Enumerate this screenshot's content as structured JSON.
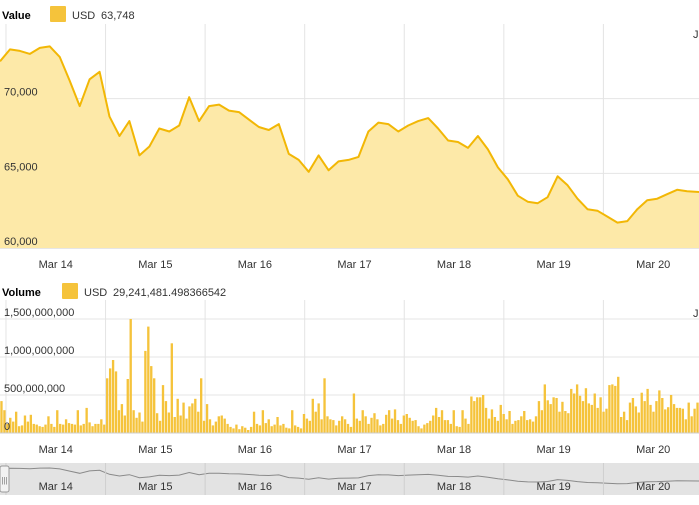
{
  "colors": {
    "line": "#f2b705",
    "fill": "#fde9a8",
    "bar": "#f5c33b",
    "grid": "#e4e4e4",
    "navigator_bg": "#dcdcdc",
    "navigator_line": "#8a8a8a"
  },
  "chart_data": [
    {
      "type": "area",
      "title": "Value",
      "legend": {
        "series_name": "USD",
        "value_label": "63,748",
        "placement": "top-left"
      },
      "x_tick_labels": [
        "Mar 14",
        "Mar 15",
        "Mar 16",
        "Mar 17",
        "Mar 18",
        "Mar 19",
        "Mar 20"
      ],
      "x_tick_positions": [
        0.5,
        1.5,
        2.5,
        3.5,
        4.5,
        5.5,
        6.5
      ],
      "xlim": [
        -0.06,
        6.96
      ],
      "y_tick_labels": [
        "60,000",
        "65,000",
        "70,000"
      ],
      "y_ticks": [
        60000,
        65000,
        70000
      ],
      "ylim": [
        60000,
        75000
      ],
      "grid": true,
      "x": [
        -0.06,
        0.04,
        0.14,
        0.24,
        0.34,
        0.44,
        0.54,
        0.64,
        0.74,
        0.84,
        0.94,
        1.04,
        1.14,
        1.24,
        1.34,
        1.44,
        1.54,
        1.64,
        1.74,
        1.84,
        1.94,
        2.04,
        2.14,
        2.24,
        2.34,
        2.44,
        2.54,
        2.64,
        2.74,
        2.84,
        2.94,
        3.04,
        3.14,
        3.24,
        3.34,
        3.44,
        3.54,
        3.64,
        3.74,
        3.84,
        3.94,
        4.04,
        4.14,
        4.24,
        4.34,
        4.44,
        4.54,
        4.64,
        4.74,
        4.84,
        4.94,
        5.04,
        5.14,
        5.24,
        5.34,
        5.44,
        5.54,
        5.64,
        5.74,
        5.84,
        5.94,
        6.04,
        6.14,
        6.24,
        6.34,
        6.44,
        6.54,
        6.64,
        6.74,
        6.84,
        6.96
      ],
      "values": [
        72500,
        73300,
        73200,
        73000,
        73400,
        73500,
        72800,
        71200,
        69500,
        71300,
        71800,
        68800,
        67500,
        68500,
        66200,
        66800,
        68000,
        67800,
        68200,
        70100,
        68500,
        69500,
        69600,
        69200,
        69100,
        68600,
        68100,
        67900,
        68300,
        66300,
        65900,
        65100,
        66200,
        65200,
        65800,
        65900,
        66100,
        67800,
        68400,
        68300,
        67800,
        68200,
        68500,
        68700,
        68000,
        67200,
        67100,
        66700,
        67500,
        66600,
        65400,
        64600,
        63500,
        63100,
        63000,
        63400,
        64800,
        64200,
        63300,
        62600,
        62500,
        62100,
        61700,
        61800,
        62600,
        63200,
        63300,
        63600,
        63900,
        63800,
        63748
      ],
      "series": [
        {
          "values_ref": "values"
        }
      ]
    },
    {
      "type": "bar",
      "title": "Volume",
      "legend": {
        "series_name": "USD",
        "value_label": "29,241,481.498366542",
        "placement": "top-left"
      },
      "x_tick_labels": [
        "Mar 14",
        "Mar 15",
        "Mar 16",
        "Mar 17",
        "Mar 18",
        "Mar 19",
        "Mar 20"
      ],
      "x_tick_positions": [
        0.5,
        1.5,
        2.5,
        3.5,
        4.5,
        5.5,
        6.5
      ],
      "xlim": [
        -0.06,
        6.96
      ],
      "y_tick_labels": [
        "0",
        "500,000,000",
        "1,000,000,000",
        "1,500,000,000"
      ],
      "y_ticks": [
        0,
        500000000,
        1000000000,
        1500000000
      ],
      "ylim": [
        0,
        1750000000
      ],
      "grid": true,
      "values": [
        420000000,
        300000000,
        120000000,
        200000000,
        150000000,
        280000000,
        90000000,
        100000000,
        230000000,
        150000000,
        240000000,
        120000000,
        110000000,
        90000000,
        80000000,
        110000000,
        220000000,
        120000000,
        80000000,
        300000000,
        120000000,
        110000000,
        180000000,
        130000000,
        120000000,
        110000000,
        300000000,
        100000000,
        120000000,
        330000000,
        140000000,
        90000000,
        120000000,
        120000000,
        180000000,
        110000000,
        720000000,
        850000000,
        960000000,
        810000000,
        300000000,
        380000000,
        230000000,
        710000000,
        1500000000,
        300000000,
        200000000,
        270000000,
        150000000,
        1080000000,
        1400000000,
        880000000,
        720000000,
        260000000,
        160000000,
        630000000,
        420000000,
        270000000,
        1180000000,
        210000000,
        450000000,
        230000000,
        400000000,
        190000000,
        350000000,
        390000000,
        450000000,
        280000000,
        720000000,
        160000000,
        380000000,
        180000000,
        100000000,
        150000000,
        220000000,
        230000000,
        190000000,
        120000000,
        80000000,
        60000000,
        110000000,
        50000000,
        90000000,
        70000000,
        40000000,
        80000000,
        280000000,
        120000000,
        100000000,
        300000000,
        130000000,
        180000000,
        90000000,
        110000000,
        210000000,
        100000000,
        120000000,
        70000000,
        60000000,
        300000000,
        100000000,
        80000000,
        60000000,
        250000000,
        190000000,
        160000000,
        450000000,
        280000000,
        390000000,
        180000000,
        720000000,
        220000000,
        180000000,
        170000000,
        100000000,
        160000000,
        220000000,
        180000000,
        120000000,
        80000000,
        520000000,
        190000000,
        160000000,
        300000000,
        220000000,
        120000000,
        200000000,
        260000000,
        180000000,
        100000000,
        120000000,
        240000000,
        300000000,
        190000000,
        310000000,
        170000000,
        120000000,
        230000000,
        250000000,
        200000000,
        160000000,
        170000000,
        90000000,
        60000000,
        110000000,
        130000000,
        160000000,
        230000000,
        330000000,
        210000000,
        300000000,
        170000000,
        170000000,
        120000000,
        300000000,
        90000000,
        80000000,
        300000000,
        190000000,
        120000000,
        480000000,
        420000000,
        470000000,
        470000000,
        500000000,
        330000000,
        190000000,
        310000000,
        210000000,
        160000000,
        370000000,
        250000000,
        180000000,
        290000000,
        120000000,
        160000000,
        170000000,
        220000000,
        290000000,
        170000000,
        180000000,
        150000000,
        220000000,
        420000000,
        300000000,
        640000000,
        430000000,
        380000000,
        470000000,
        460000000,
        280000000,
        410000000,
        290000000,
        260000000,
        580000000,
        520000000,
        640000000,
        490000000,
        420000000,
        590000000,
        390000000,
        370000000,
        520000000,
        330000000,
        470000000,
        280000000,
        320000000,
        630000000,
        640000000,
        620000000,
        740000000,
        210000000,
        280000000,
        170000000,
        400000000,
        460000000,
        350000000,
        270000000,
        530000000,
        420000000,
        580000000,
        370000000,
        280000000,
        420000000,
        560000000,
        460000000,
        310000000,
        340000000,
        500000000,
        380000000,
        330000000,
        330000000,
        320000000,
        180000000,
        400000000,
        220000000,
        320000000,
        400000000
      ]
    }
  ],
  "navigator": {
    "x_tick_labels": [
      "Mar 14",
      "Mar 15",
      "Mar 16",
      "Mar 17",
      "Mar 18",
      "Mar 19",
      "Mar 20"
    ],
    "handle_label": "|||"
  },
  "corner_labels": {
    "top_right": "J",
    "mid_right": "J"
  }
}
